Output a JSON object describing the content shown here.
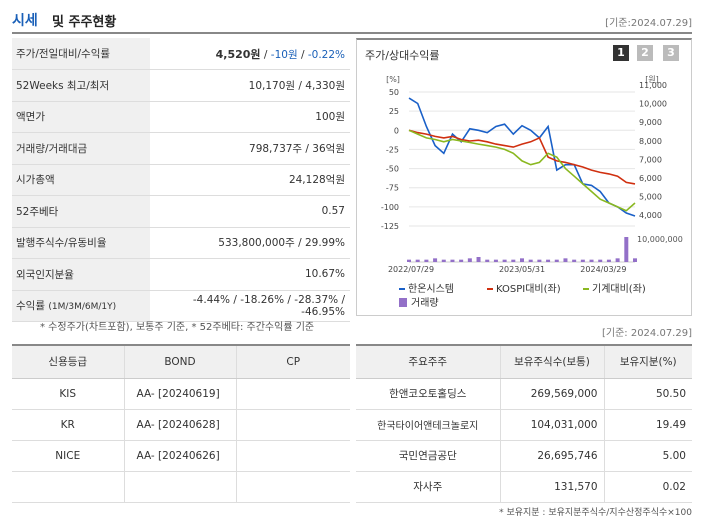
{
  "header": {
    "title": "시세",
    "subtitle": "및 주주현황",
    "asof": "[기준:2024.07.29]"
  },
  "stats": {
    "price_row": {
      "label": "주가/전일대비/수익률",
      "price": "4,520원",
      "sep1": "/",
      "change": "-10원",
      "sep2": "/",
      "rate": "-0.22%"
    },
    "week52": {
      "label": "52Weeks 최고/최저",
      "value": "10,170원 / 4,330원"
    },
    "par": {
      "label": "액면가",
      "value": "100원"
    },
    "volume": {
      "label": "거래량/거래대금",
      "value": "798,737주 / 36억원"
    },
    "marketcap": {
      "label": "시가총액",
      "value": "24,128억원"
    },
    "beta": {
      "label": "52주베타",
      "value": "0.57"
    },
    "shares": {
      "label": "발행주식수/유동비율",
      "value": "533,800,000주 / 29.99%"
    },
    "foreign": {
      "label": "외국인지분율",
      "value": "10.67%"
    },
    "returns": {
      "label": "수익률",
      "label_small": "(1M/3M/6M/1Y)",
      "value": "-4.44% / -18.26% / -28.37% / -46.95%"
    }
  },
  "note1": "* 수정주가(차트포함), 보통주 기준, * 52주베타: 주간수익률 기준",
  "chart_panel": {
    "title": "주가/상대수익률",
    "buttons": [
      "1",
      "2",
      "3"
    ],
    "left_unit": "[%]",
    "right_unit": "[원]",
    "vol_label": "10,000,000"
  },
  "chart_data": {
    "type": "line",
    "title": "주가/상대수익률",
    "x_ticks": [
      "2022/07/29",
      "2023/05/31",
      "2024/03/29"
    ],
    "y_left": {
      "unit": "%",
      "ticks": [
        50,
        25,
        0,
        -25,
        -50,
        -75,
        -100,
        -125
      ],
      "range": [
        -125,
        50
      ]
    },
    "y_right": {
      "unit": "원",
      "ticks": [
        "11,000",
        "10,000",
        "9,000",
        "8,000",
        "7,000",
        "6,000",
        "5,000",
        "4,000"
      ],
      "range": [
        4000,
        11000
      ]
    },
    "series": [
      {
        "name": "한온시스템",
        "color": "#1a60c8",
        "values": [
          42,
          35,
          5,
          -20,
          -30,
          -5,
          -15,
          2,
          0,
          -3,
          5,
          8,
          -5,
          6,
          0,
          -10,
          5,
          -52,
          -45,
          -45,
          -70,
          -72,
          -80,
          -95,
          -100,
          -108,
          -112
        ]
      },
      {
        "name": "KOSPI대비(좌)",
        "color": "#d03010",
        "values": [
          0,
          -3,
          -5,
          -8,
          -10,
          -8,
          -12,
          -14,
          -13,
          -15,
          -18,
          -20,
          -22,
          -18,
          -15,
          -10,
          -35,
          -40,
          -42,
          -45,
          -48,
          -52,
          -55,
          -57,
          -60,
          -68,
          -70
        ]
      },
      {
        "name": "기계대비(좌)",
        "color": "#8ab820",
        "values": [
          0,
          -5,
          -10,
          -12,
          -15,
          -12,
          -14,
          -16,
          -18,
          -20,
          -22,
          -25,
          -30,
          -40,
          -45,
          -42,
          -30,
          -35,
          -50,
          -60,
          -70,
          -80,
          -90,
          -95,
          -100,
          -105,
          -95
        ]
      }
    ],
    "volume": {
      "name": "거래량",
      "color": "#9370c8",
      "values": [
        1,
        1,
        1,
        2,
        1,
        1,
        1,
        2,
        3,
        1,
        1,
        1,
        1,
        2,
        1,
        1,
        1,
        1,
        2,
        1,
        1,
        1,
        1,
        1,
        2,
        18,
        2
      ]
    }
  },
  "legend": [
    "한온시스템",
    "KOSPI대비(좌)",
    "기계대비(좌)",
    "거래량"
  ],
  "asof2": "[기준: 2024.07.29]",
  "credit": {
    "headers": [
      "신용등급",
      "BOND",
      "CP"
    ],
    "rows": [
      {
        "agency": "KIS",
        "bond": "AA-  [20240619]",
        "cp": ""
      },
      {
        "agency": "KR",
        "bond": "AA-  [20240628]",
        "cp": ""
      },
      {
        "agency": "NICE",
        "bond": "AA-  [20240626]",
        "cp": ""
      },
      {
        "agency": "",
        "bond": "",
        "cp": ""
      }
    ]
  },
  "holders": {
    "headers": [
      "주요주주",
      "보유주식수(보통)",
      "보유지분(%)"
    ],
    "rows": [
      {
        "name": "한앤코오토홀딩스",
        "shares": "269,569,000",
        "pct": "50.50"
      },
      {
        "name": "한국타이어앤테크놀로지",
        "shares": "104,031,000",
        "pct": "19.49"
      },
      {
        "name": "국민연금공단",
        "shares": "26,695,746",
        "pct": "5.00"
      },
      {
        "name": "자사주",
        "shares": "131,570",
        "pct": "0.02"
      }
    ]
  },
  "note2": "* 보유지분 : 보유지분주식수/지수산정주식수×100"
}
